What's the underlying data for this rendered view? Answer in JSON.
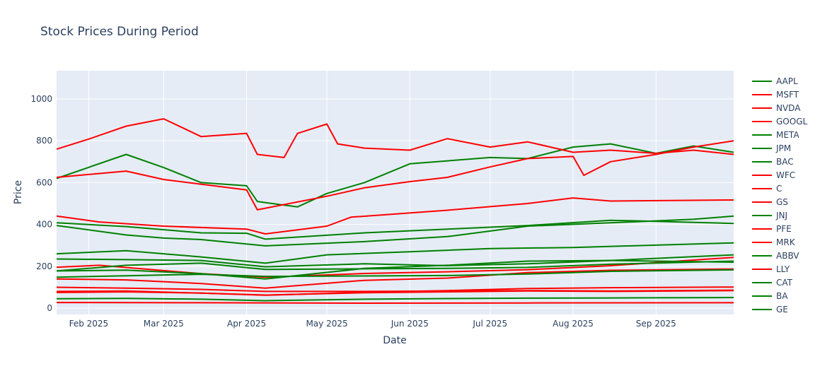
{
  "chart_data": {
    "type": "line",
    "title": "Stock Prices During Period",
    "xlabel": "Date",
    "ylabel": "Price",
    "x_range": [
      "2025-01-20",
      "2025-09-30"
    ],
    "ylim": [
      -30,
      1135
    ],
    "y_ticks": [
      0,
      200,
      400,
      600,
      800,
      1000
    ],
    "x_ticks": [
      {
        "date": "2025-02-01",
        "label": "Feb 2025"
      },
      {
        "date": "2025-03-01",
        "label": "Mar 2025"
      },
      {
        "date": "2025-04-01",
        "label": "Apr 2025"
      },
      {
        "date": "2025-05-01",
        "label": "May 2025"
      },
      {
        "date": "2025-06-01",
        "label": "Jun 2025"
      },
      {
        "date": "2025-07-01",
        "label": "Jul 2025"
      },
      {
        "date": "2025-08-01",
        "label": "Aug 2025"
      },
      {
        "date": "2025-09-01",
        "label": "Sep 2025"
      }
    ],
    "grid": true,
    "legend_position": "right",
    "colors": {
      "up": "#008000",
      "down": "#ff0000",
      "plot_bg": "#e5ecf6",
      "grid": "#ffffff",
      "text": "#2a3f5f"
    },
    "series": [
      {
        "name": "AAPL",
        "color": "#008000",
        "points": [
          [
            "2025-01-20",
            235
          ],
          [
            "2025-02-15",
            232
          ],
          [
            "2025-03-15",
            228
          ],
          [
            "2025-04-08",
            198
          ],
          [
            "2025-05-15",
            212
          ],
          [
            "2025-06-15",
            203
          ],
          [
            "2025-07-15",
            212
          ],
          [
            "2025-08-15",
            228
          ],
          [
            "2025-09-30",
            255
          ]
        ]
      },
      {
        "name": "MSFT",
        "color": "#ff0000",
        "points": [
          [
            "2025-01-20",
            440
          ],
          [
            "2025-02-05",
            412
          ],
          [
            "2025-03-01",
            392
          ],
          [
            "2025-04-01",
            378
          ],
          [
            "2025-04-08",
            355
          ],
          [
            "2025-05-01",
            392
          ],
          [
            "2025-05-10",
            435
          ],
          [
            "2025-06-15",
            468
          ],
          [
            "2025-07-15",
            500
          ],
          [
            "2025-08-01",
            527
          ],
          [
            "2025-08-15",
            512
          ],
          [
            "2025-09-30",
            517
          ]
        ]
      },
      {
        "name": "NVDA",
        "color": "#ff0000",
        "points": [
          [
            "2025-01-20",
            140
          ],
          [
            "2025-02-15",
            135
          ],
          [
            "2025-03-15",
            118
          ],
          [
            "2025-04-08",
            96
          ],
          [
            "2025-05-15",
            133
          ],
          [
            "2025-06-15",
            144
          ],
          [
            "2025-07-15",
            170
          ],
          [
            "2025-08-15",
            181
          ],
          [
            "2025-09-30",
            187
          ]
        ]
      },
      {
        "name": "GOOGL",
        "color": "#ff0000",
        "points": [
          [
            "2025-01-20",
            196
          ],
          [
            "2025-02-05",
            205
          ],
          [
            "2025-03-15",
            165
          ],
          [
            "2025-04-08",
            148
          ],
          [
            "2025-05-15",
            166
          ],
          [
            "2025-06-15",
            174
          ],
          [
            "2025-07-15",
            184
          ],
          [
            "2025-08-15",
            203
          ],
          [
            "2025-09-30",
            243
          ]
        ]
      },
      {
        "name": "META",
        "color": "#008000",
        "points": [
          [
            "2025-01-20",
            620
          ],
          [
            "2025-02-15",
            735
          ],
          [
            "2025-03-01",
            672
          ],
          [
            "2025-03-15",
            600
          ],
          [
            "2025-04-01",
            585
          ],
          [
            "2025-04-05",
            510
          ],
          [
            "2025-04-20",
            484
          ],
          [
            "2025-05-01",
            548
          ],
          [
            "2025-05-15",
            600
          ],
          [
            "2025-06-01",
            690
          ],
          [
            "2025-07-01",
            720
          ],
          [
            "2025-07-15",
            715
          ],
          [
            "2025-08-01",
            770
          ],
          [
            "2025-08-15",
            785
          ],
          [
            "2025-09-01",
            740
          ],
          [
            "2025-09-15",
            775
          ],
          [
            "2025-09-30",
            745
          ]
        ]
      },
      {
        "name": "JPM",
        "color": "#008000",
        "points": [
          [
            "2025-01-20",
            260
          ],
          [
            "2025-02-15",
            275
          ],
          [
            "2025-03-15",
            245
          ],
          [
            "2025-04-08",
            215
          ],
          [
            "2025-05-01",
            255
          ],
          [
            "2025-06-01",
            270
          ],
          [
            "2025-07-01",
            285
          ],
          [
            "2025-08-01",
            290
          ],
          [
            "2025-09-30",
            312
          ]
        ]
      },
      {
        "name": "BAC",
        "color": "#008000",
        "points": [
          [
            "2025-01-20",
            45
          ],
          [
            "2025-02-15",
            47
          ],
          [
            "2025-03-15",
            43
          ],
          [
            "2025-04-08",
            36
          ],
          [
            "2025-05-15",
            43
          ],
          [
            "2025-06-15",
            46
          ],
          [
            "2025-07-15",
            48
          ],
          [
            "2025-08-15",
            49
          ],
          [
            "2025-09-30",
            51
          ]
        ]
      },
      {
        "name": "WFC",
        "color": "#ff0000",
        "points": [
          [
            "2025-01-20",
            75
          ],
          [
            "2025-02-15",
            78
          ],
          [
            "2025-03-15",
            72
          ],
          [
            "2025-04-08",
            63
          ],
          [
            "2025-05-15",
            74
          ],
          [
            "2025-06-15",
            78
          ],
          [
            "2025-07-15",
            82
          ],
          [
            "2025-08-15",
            80
          ],
          [
            "2025-09-30",
            84
          ]
        ]
      },
      {
        "name": "C",
        "color": "#ff0000",
        "points": [
          [
            "2025-01-20",
            80
          ],
          [
            "2025-02-15",
            82
          ],
          [
            "2025-03-15",
            72
          ],
          [
            "2025-04-08",
            62
          ],
          [
            "2025-05-15",
            76
          ],
          [
            "2025-06-15",
            84
          ],
          [
            "2025-07-15",
            94
          ],
          [
            "2025-08-15",
            98
          ],
          [
            "2025-09-30",
            101
          ]
        ]
      },
      {
        "name": "GS",
        "color": "#ff0000",
        "points": [
          [
            "2025-01-20",
            625
          ],
          [
            "2025-02-15",
            655
          ],
          [
            "2025-03-01",
            615
          ],
          [
            "2025-04-01",
            565
          ],
          [
            "2025-04-05",
            470
          ],
          [
            "2025-04-15",
            495
          ],
          [
            "2025-05-01",
            535
          ],
          [
            "2025-05-15",
            575
          ],
          [
            "2025-06-01",
            605
          ],
          [
            "2025-06-15",
            625
          ],
          [
            "2025-07-01",
            675
          ],
          [
            "2025-07-15",
            715
          ],
          [
            "2025-08-01",
            725
          ],
          [
            "2025-08-05",
            635
          ],
          [
            "2025-08-15",
            700
          ],
          [
            "2025-09-01",
            735
          ],
          [
            "2025-09-15",
            770
          ],
          [
            "2025-09-30",
            800
          ]
        ]
      },
      {
        "name": "JNJ",
        "color": "#008000",
        "points": [
          [
            "2025-01-20",
            148
          ],
          [
            "2025-02-15",
            155
          ],
          [
            "2025-03-15",
            162
          ],
          [
            "2025-04-08",
            152
          ],
          [
            "2025-05-15",
            154
          ],
          [
            "2025-06-15",
            156
          ],
          [
            "2025-07-15",
            163
          ],
          [
            "2025-08-15",
            176
          ],
          [
            "2025-09-30",
            183
          ]
        ]
      },
      {
        "name": "PFE",
        "color": "#ff0000",
        "points": [
          [
            "2025-01-20",
            27
          ],
          [
            "2025-03-15",
            26
          ],
          [
            "2025-05-15",
            24
          ],
          [
            "2025-07-15",
            25
          ],
          [
            "2025-09-30",
            26
          ]
        ]
      },
      {
        "name": "MRK",
        "color": "#ff0000",
        "points": [
          [
            "2025-01-20",
            100
          ],
          [
            "2025-02-15",
            96
          ],
          [
            "2025-03-15",
            90
          ],
          [
            "2025-04-08",
            80
          ],
          [
            "2025-05-15",
            80
          ],
          [
            "2025-06-15",
            82
          ],
          [
            "2025-07-15",
            84
          ],
          [
            "2025-08-15",
            82
          ],
          [
            "2025-09-30",
            86
          ]
        ]
      },
      {
        "name": "ABBV",
        "color": "#008000",
        "points": [
          [
            "2025-01-20",
            178
          ],
          [
            "2025-02-15",
            205
          ],
          [
            "2025-03-15",
            215
          ],
          [
            "2025-04-08",
            185
          ],
          [
            "2025-05-15",
            188
          ],
          [
            "2025-06-15",
            190
          ],
          [
            "2025-07-15",
            195
          ],
          [
            "2025-08-15",
            210
          ],
          [
            "2025-09-30",
            225
          ]
        ]
      },
      {
        "name": "LLY",
        "color": "#ff0000",
        "points": [
          [
            "2025-01-20",
            760
          ],
          [
            "2025-02-01",
            808
          ],
          [
            "2025-02-15",
            870
          ],
          [
            "2025-03-01",
            905
          ],
          [
            "2025-03-15",
            820
          ],
          [
            "2025-04-01",
            835
          ],
          [
            "2025-04-05",
            735
          ],
          [
            "2025-04-15",
            720
          ],
          [
            "2025-04-20",
            835
          ],
          [
            "2025-05-01",
            880
          ],
          [
            "2025-05-05",
            785
          ],
          [
            "2025-05-15",
            765
          ],
          [
            "2025-06-01",
            755
          ],
          [
            "2025-06-15",
            810
          ],
          [
            "2025-07-01",
            770
          ],
          [
            "2025-07-15",
            795
          ],
          [
            "2025-08-01",
            745
          ],
          [
            "2025-08-15",
            755
          ],
          [
            "2025-09-01",
            740
          ],
          [
            "2025-09-15",
            755
          ],
          [
            "2025-09-30",
            735
          ]
        ]
      },
      {
        "name": "CAT",
        "color": "#008000",
        "points": [
          [
            "2025-01-20",
            395
          ],
          [
            "2025-02-15",
            350
          ],
          [
            "2025-03-01",
            335
          ],
          [
            "2025-03-15",
            328
          ],
          [
            "2025-04-08",
            298
          ],
          [
            "2025-05-15",
            318
          ],
          [
            "2025-06-15",
            342
          ],
          [
            "2025-07-15",
            392
          ],
          [
            "2025-08-15",
            408
          ],
          [
            "2025-09-15",
            425
          ],
          [
            "2025-09-30",
            440
          ]
        ]
      },
      {
        "name": "BA",
        "color": "#008000",
        "points": [
          [
            "2025-01-20",
            178
          ],
          [
            "2025-02-15",
            182
          ],
          [
            "2025-03-15",
            165
          ],
          [
            "2025-04-08",
            140
          ],
          [
            "2025-05-15",
            190
          ],
          [
            "2025-06-15",
            205
          ],
          [
            "2025-07-15",
            225
          ],
          [
            "2025-08-15",
            228
          ],
          [
            "2025-09-30",
            220
          ]
        ]
      },
      {
        "name": "GE",
        "color": "#008000",
        "points": [
          [
            "2025-01-20",
            408
          ],
          [
            "2025-02-15",
            390
          ],
          [
            "2025-03-15",
            360
          ],
          [
            "2025-04-01",
            358
          ],
          [
            "2025-04-08",
            330
          ],
          [
            "2025-05-15",
            360
          ],
          [
            "2025-06-15",
            378
          ],
          [
            "2025-07-15",
            395
          ],
          [
            "2025-08-15",
            420
          ],
          [
            "2025-09-01",
            415
          ],
          [
            "2025-09-30",
            405
          ]
        ]
      }
    ]
  }
}
